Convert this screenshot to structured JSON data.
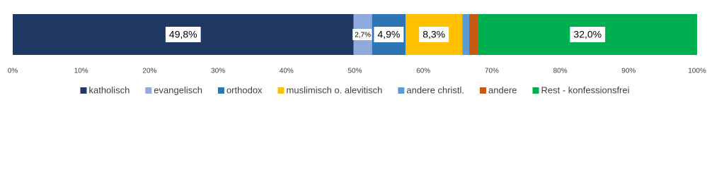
{
  "chart_data": {
    "type": "stacked-bar-horizontal",
    "series": [
      {
        "name": "katholisch",
        "color": "#203864",
        "values": [
          49.8
        ],
        "value_labels": [
          "49,8%"
        ]
      },
      {
        "name": "evangelisch",
        "color": "#8faadc",
        "values": [
          2.7
        ],
        "value_labels": [
          "2,7%"
        ]
      },
      {
        "name": "orthodox",
        "color": "#2e75b6",
        "values": [
          4.9
        ],
        "value_labels": [
          "4,9%"
        ]
      },
      {
        "name": "muslimisch o. alevitisch",
        "color": "#ffc000",
        "values": [
          8.3
        ],
        "value_labels": [
          "8,3%"
        ]
      },
      {
        "name": "andere christl.",
        "color": "#5b9bd5",
        "values": [
          1.0
        ],
        "value_labels": [
          null
        ]
      },
      {
        "name": "andere",
        "color": "#c55a11",
        "values": [
          1.3
        ],
        "value_labels": [
          null
        ]
      },
      {
        "name": "Rest - konfessionsfrei",
        "color": "#00b050",
        "values": [
          32.0
        ],
        "value_labels": [
          "32,0%"
        ]
      }
    ],
    "xlim": [
      0,
      100
    ],
    "xticks": [
      {
        "value": 0,
        "label": "0%"
      },
      {
        "value": 10,
        "label": "10%"
      },
      {
        "value": 20,
        "label": "20%"
      },
      {
        "value": 30,
        "label": "30%"
      },
      {
        "value": 40,
        "label": "40%"
      },
      {
        "value": 50,
        "label": "50%"
      },
      {
        "value": 60,
        "label": "60%"
      },
      {
        "value": 70,
        "label": "70%"
      },
      {
        "value": 80,
        "label": "80%"
      },
      {
        "value": 90,
        "label": "90%"
      },
      {
        "value": 100,
        "label": "100%"
      }
    ],
    "legend": "bottom"
  }
}
